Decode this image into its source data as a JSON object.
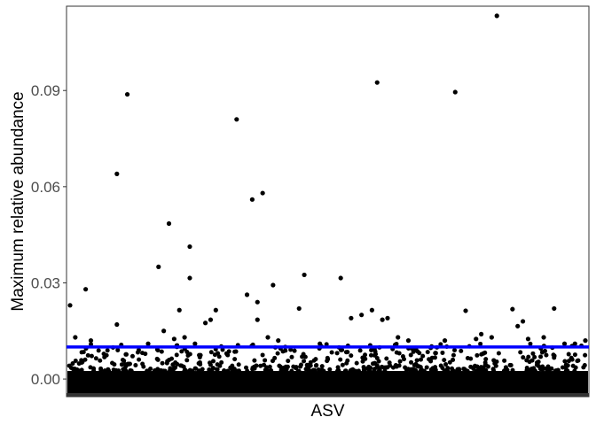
{
  "chart_data": {
    "type": "scatter",
    "title": "",
    "xlabel": "ASV",
    "ylabel": "Maximum relative abundance",
    "ylim": [
      -0.0055,
      0.1163
    ],
    "yticks": [
      0.0,
      0.03,
      0.06,
      0.09
    ],
    "ytick_labels": [
      "0.00",
      "0.03",
      "0.06",
      "0.09"
    ],
    "xticks_shown": false,
    "grid": false,
    "legend": "none",
    "point_color": "#000000",
    "threshold": {
      "value": 0.01,
      "color": "#0000ff"
    },
    "n_x": 100,
    "series": [
      {
        "points": [
          [
            0,
            0.023
          ],
          [
            1,
            0.013
          ],
          [
            3,
            0.028
          ],
          [
            4,
            0.012
          ],
          [
            9,
            0.017
          ],
          [
            9,
            0.064
          ],
          [
            11,
            0.0888
          ],
          [
            15,
            0.011
          ],
          [
            17,
            0.035
          ],
          [
            18,
            0.015
          ],
          [
            19,
            0.0485
          ],
          [
            20,
            0.0125
          ],
          [
            21,
            0.0215
          ],
          [
            22,
            0.013
          ],
          [
            23,
            0.0315
          ],
          [
            23,
            0.0413
          ],
          [
            24,
            0.011
          ],
          [
            26,
            0.0175
          ],
          [
            27,
            0.0185
          ],
          [
            28,
            0.0215
          ],
          [
            32,
            0.081
          ],
          [
            34,
            0.0263
          ],
          [
            35,
            0.056
          ],
          [
            36,
            0.024
          ],
          [
            36,
            0.0185
          ],
          [
            37,
            0.058
          ],
          [
            38,
            0.013
          ],
          [
            39,
            0.0293
          ],
          [
            40,
            0.012
          ],
          [
            44,
            0.022
          ],
          [
            45,
            0.0325
          ],
          [
            48,
            0.011
          ],
          [
            52,
            0.0315
          ],
          [
            54,
            0.019
          ],
          [
            56,
            0.02
          ],
          [
            58,
            0.0215
          ],
          [
            59,
            0.0925
          ],
          [
            60,
            0.0185
          ],
          [
            61,
            0.019
          ],
          [
            63,
            0.013
          ],
          [
            65,
            0.012
          ],
          [
            72,
            0.012
          ],
          [
            74,
            0.0895
          ],
          [
            76,
            0.0213
          ],
          [
            78,
            0.0125
          ],
          [
            79,
            0.014
          ],
          [
            81,
            0.013
          ],
          [
            82,
            0.1133
          ],
          [
            85,
            0.0218
          ],
          [
            86,
            0.0165
          ],
          [
            87,
            0.018
          ],
          [
            88,
            0.0125
          ],
          [
            91,
            0.013
          ],
          [
            93,
            0.022
          ],
          [
            95,
            0.011
          ],
          [
            97,
            0.011
          ],
          [
            99,
            0.012
          ]
        ]
      }
    ]
  }
}
